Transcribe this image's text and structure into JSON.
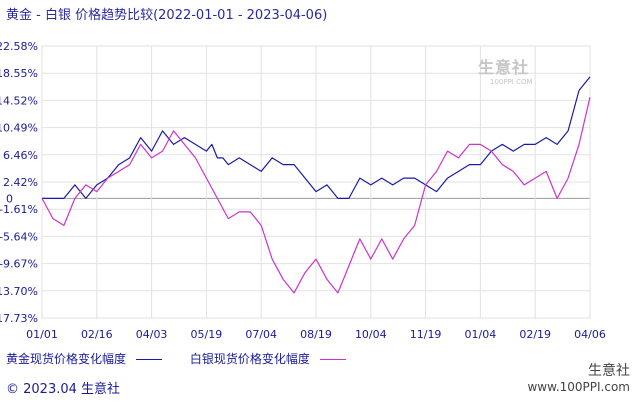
{
  "chart_data": {
    "type": "line",
    "title": "黄金 - 白银  价格趋势比较(2022-01-01 - 2023-04-06)",
    "y_ticks": [
      "22.58%",
      "18.55%",
      "14.52%",
      "10.49%",
      "6.46%",
      "2.42%",
      "-1.61%",
      "-5.64%",
      "-9.67%",
      "-13.70%",
      "-17.73%"
    ],
    "y_tick_values": [
      22.58,
      18.55,
      14.52,
      10.49,
      6.46,
      2.42,
      -1.61,
      -5.64,
      -9.67,
      -13.7,
      -17.73
    ],
    "zero_extra_label": "0",
    "x_ticks": [
      "01/01",
      "02/16",
      "04/03",
      "05/19",
      "07/04",
      "08/19",
      "10/04",
      "11/19",
      "01/04",
      "02/19",
      "04/06"
    ],
    "ylim": [
      -17.73,
      22.58
    ],
    "grid": true,
    "series": [
      {
        "name": "黄金现货价格变化幅度",
        "color": "#1a1aa8",
        "x": [
          0,
          2,
          4,
          6,
          8,
          10,
          12,
          14,
          16,
          18,
          20,
          22,
          24,
          26,
          28,
          30,
          31,
          32,
          33,
          34,
          36,
          38,
          40,
          42,
          44,
          46,
          48,
          50,
          52,
          54,
          56,
          58,
          60,
          62,
          64,
          66,
          68,
          70,
          72,
          74,
          76,
          78,
          80,
          82,
          84,
          86,
          88,
          90,
          92,
          94,
          96,
          98,
          100
        ],
        "values": [
          0,
          0,
          0,
          2,
          0,
          2,
          3,
          5,
          6,
          9,
          7,
          10,
          8,
          9,
          8,
          7,
          8,
          6,
          6,
          5,
          6,
          5,
          4,
          6,
          5,
          5,
          3,
          1,
          2,
          0,
          0,
          3,
          2,
          3,
          2,
          3,
          3,
          2,
          1,
          3,
          4,
          5,
          5,
          7,
          8,
          7,
          8,
          8,
          9,
          8,
          10,
          16,
          18
        ]
      },
      {
        "name": "白银现货价格变化幅度",
        "color": "#cc33cc",
        "x": [
          0,
          2,
          4,
          6,
          8,
          10,
          12,
          14,
          16,
          18,
          20,
          22,
          24,
          26,
          28,
          30,
          32,
          34,
          36,
          38,
          40,
          42,
          44,
          46,
          48,
          50,
          52,
          54,
          56,
          58,
          60,
          62,
          64,
          66,
          68,
          70,
          72,
          74,
          76,
          78,
          80,
          82,
          84,
          86,
          88,
          90,
          92,
          94,
          96,
          98,
          100
        ],
        "values": [
          0,
          -3,
          -4,
          0,
          2,
          1,
          3,
          4,
          5,
          8,
          6,
          7,
          10,
          8,
          6,
          3,
          0,
          -3,
          -2,
          -2,
          -4,
          -9,
          -12,
          -14,
          -11,
          -9,
          -12,
          -14,
          -10,
          -6,
          -9,
          -6,
          -9,
          -6,
          -4,
          2,
          4,
          7,
          6,
          8,
          8,
          7,
          5,
          4,
          2,
          3,
          4,
          0,
          3,
          8,
          15
        ]
      }
    ]
  },
  "legend": {
    "gold_label": "黄金现货价格变化幅度",
    "silver_label": "白银现货价格变化幅度"
  },
  "footer": {
    "copyright": "© 2023.04 生意社"
  },
  "watermark": {
    "name": "生意社",
    "url": "100PPI.COM"
  },
  "brand": {
    "logo_text": "生意社",
    "url": "www.100PPI.com"
  }
}
